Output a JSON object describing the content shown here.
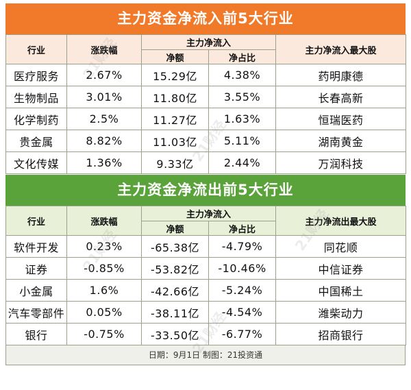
{
  "inflow": {
    "title": "主力资金净流入前5大行业",
    "headers": {
      "industry": "行业",
      "change": "涨跌幅",
      "group": "主力净流入",
      "amount": "净额",
      "ratio": "净占比",
      "top_stock": "主力净流入最大股"
    },
    "rows": [
      {
        "industry": "医疗服务",
        "change": "2.67%",
        "amount": "15.29亿",
        "ratio": "4.38%",
        "top_stock": "药明康德"
      },
      {
        "industry": "生物制品",
        "change": "3.01%",
        "amount": "11.80亿",
        "ratio": "3.55%",
        "top_stock": "长春高新"
      },
      {
        "industry": "化学制药",
        "change": "2.5%",
        "amount": "11.27亿",
        "ratio": "1.63%",
        "top_stock": "恒瑞医药"
      },
      {
        "industry": "贵金属",
        "change": "8.82%",
        "amount": "11.03亿",
        "ratio": "5.11%",
        "top_stock": "湖南黄金"
      },
      {
        "industry": "文化传媒",
        "change": "1.36%",
        "amount": "9.33亿",
        "ratio": "2.44%",
        "top_stock": "万润科技"
      }
    ]
  },
  "outflow": {
    "title": "主力资金净流出前5大行业",
    "headers": {
      "industry": "行业",
      "change": "涨跌幅",
      "group": "主力净流入",
      "amount": "净额",
      "ratio": "净占比",
      "top_stock": "主力净流出最大股"
    },
    "rows": [
      {
        "industry": "软件开发",
        "change": "0.23%",
        "amount": "-65.38亿",
        "ratio": "-4.79%",
        "top_stock": "同花顺"
      },
      {
        "industry": "证券",
        "change": "-0.85%",
        "amount": "-53.82亿",
        "ratio": "-10.46%",
        "top_stock": "中信证券"
      },
      {
        "industry": "小金属",
        "change": "1.6%",
        "amount": "-42.66亿",
        "ratio": "-5.24%",
        "top_stock": "中国稀土"
      },
      {
        "industry": "汽车零部件",
        "change": "0.05%",
        "amount": "-38.11亿",
        "ratio": "-4.54%",
        "top_stock": "潍柴动力"
      },
      {
        "industry": "银行",
        "change": "-0.75%",
        "amount": "-33.50亿",
        "ratio": "-6.77%",
        "top_stock": "招商银行"
      }
    ]
  },
  "footer": "日期：9月1日 制图：21投资通",
  "watermark": "21财经",
  "colors": {
    "inflow_banner": "#f07a2a",
    "outflow_banner": "#5aa23a"
  }
}
